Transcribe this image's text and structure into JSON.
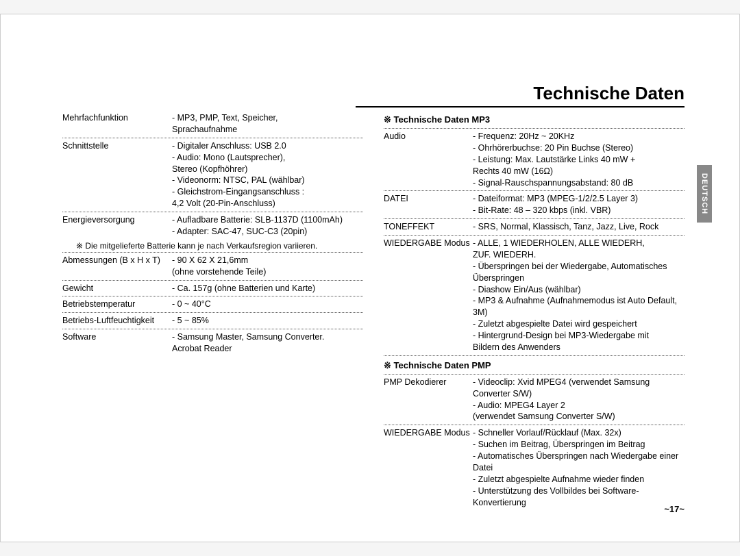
{
  "title": "Technische Daten",
  "side_tab": "DEUTSCH",
  "page_number": "~17~",
  "left_column": {
    "rows": [
      {
        "label": "Mehrfachfunktion",
        "lines": [
          "- MP3, PMP, Text, Speicher,",
          "  Sprachaufnahme"
        ]
      },
      {
        "label": "Schnittstelle",
        "lines": [
          "- Digitaler Anschluss: USB 2.0",
          "- Audio: Mono (Lautsprecher),",
          "          Stereo (Kopfhöhrer)",
          "- Videonorm: NTSC, PAL (wählbar)",
          "- Gleichstrom-Eingangsanschluss :",
          "  4,2 Volt (20-Pin-Anschluss)"
        ]
      },
      {
        "label": "Energieversorgung",
        "lines": [
          "- Aufladbare Batterie: SLB-1137D (1100mAh)",
          "- Adapter: SAC-47, SUC-C3 (20pin)"
        ],
        "noborder": true
      }
    ],
    "note": "※ Die mitgelieferte Batterie kann je nach Verkaufsregion variieren.",
    "rows2": [
      {
        "label": "Abmessungen (B x H x T)",
        "lines": [
          "- 90 X 62 X 21,6mm",
          "  (ohne vorstehende Teile)"
        ]
      },
      {
        "label": "Gewicht",
        "lines": [
          "- Ca. 157g (ohne Batterien und Karte)"
        ]
      },
      {
        "label": "Betriebstemperatur",
        "lines": [
          "- 0 ~ 40°C"
        ]
      },
      {
        "label": "Betriebs-Luftfeuchtigkeit",
        "lines": [
          "- 5 ~ 85%"
        ]
      },
      {
        "label": "Software",
        "lines": [
          "- Samsung Master, Samsung Converter.",
          "  Acrobat Reader"
        ],
        "noborder": true
      }
    ]
  },
  "right_column": {
    "heading1": "※ Technische Daten MP3",
    "rows1": [
      {
        "label": "Audio",
        "lines": [
          "- Frequenz: 20Hz ~ 20KHz",
          "- Ohrhörerbuchse: 20 Pin Buchse (Stereo)",
          "- Leistung: Max. Lautstärke Links 40 mW +",
          "             Rechts 40 mW (16Ω)",
          "- Signal-Rauschspannungsabstand: 80 dB"
        ]
      },
      {
        "label": "DATEI",
        "lines": [
          "- Dateiformat: MP3 (MPEG-1/2/2.5 Layer 3)",
          "- Bit-Rate: 48 – 320 kbps (inkl. VBR)"
        ]
      },
      {
        "label": "TONEFFEKT",
        "lines": [
          "- SRS, Normal, Klassisch, Tanz, Jazz, Live, Rock"
        ]
      },
      {
        "label": "WIEDERGABE Modus",
        "lines": [
          "- ALLE, 1 WIEDERHOLEN, ALLE WIEDERH,",
          "  ZUF. WIEDERH.",
          "- Überspringen bei der Wiedergabe, Automatisches Überspringen",
          "- Diashow Ein/Aus (wählbar)",
          "- MP3 & Aufnahme (Aufnahmemodus ist Auto Default, 3M)",
          "- Zuletzt abgespielte Datei wird gespeichert",
          "- Hintergrund-Design bei MP3-Wiedergabe mit",
          "  Bildern des Anwenders"
        ]
      }
    ],
    "heading2": "※ Technische Daten PMP",
    "rows2": [
      {
        "label": "PMP Dekodierer",
        "lines": [
          "- Videoclip: Xvid MPEG4 (verwendet Samsung Converter S/W)",
          "- Audio: MPEG4 Layer 2",
          "  (verwendet Samsung Converter S/W)"
        ]
      },
      {
        "label": "WIEDERGABE Modus",
        "lines": [
          "- Schneller Vorlauf/Rücklauf (Max. 32x)",
          "- Suchen im Beitrag, Überspringen im Beitrag",
          "- Automatisches Überspringen nach Wiedergabe einer Datei",
          "- Zuletzt abgespielte Aufnahme wieder finden",
          "- Unterstützung des Vollbildes bei Software-Konvertierung"
        ],
        "noborder": true
      }
    ]
  }
}
